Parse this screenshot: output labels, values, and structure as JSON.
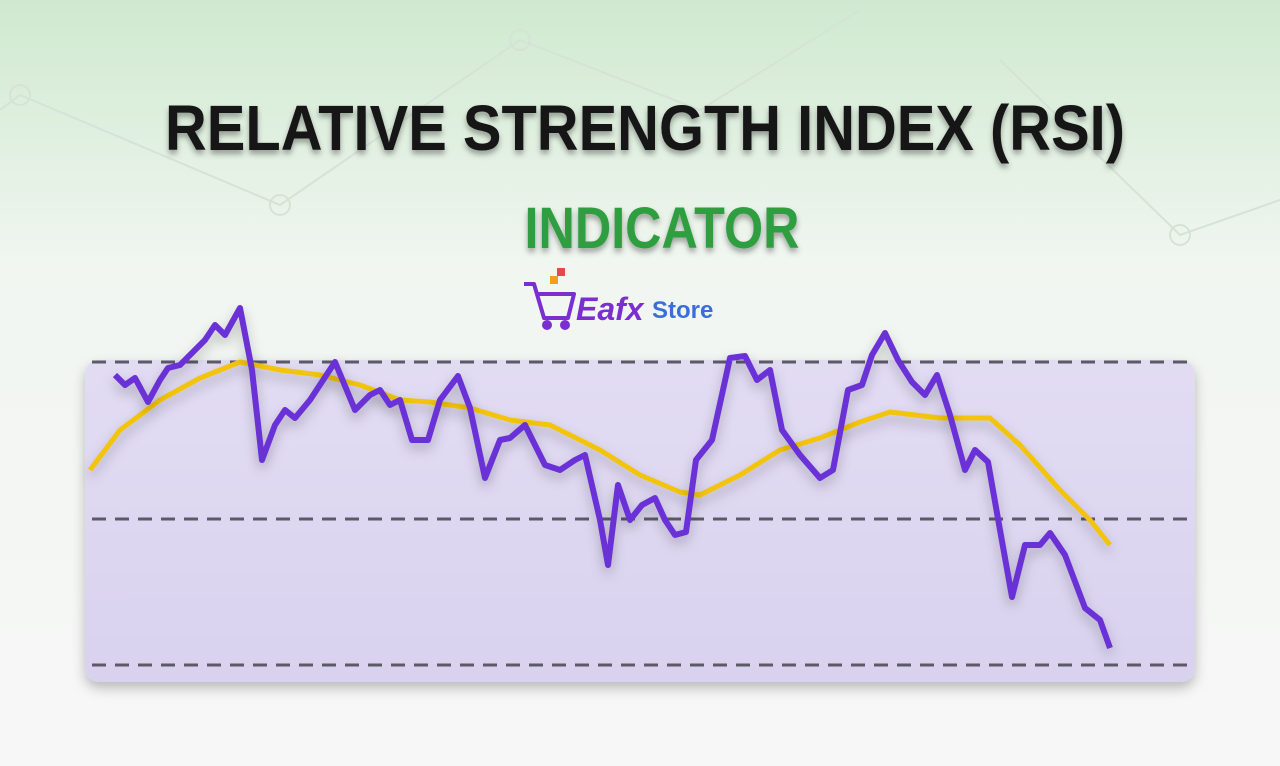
{
  "title": "RELATIVE STRENGTH INDEX (RSI)",
  "subtitle": "INDICATOR",
  "logo": {
    "brand": "Eafx",
    "suffix": "Store"
  }
}
